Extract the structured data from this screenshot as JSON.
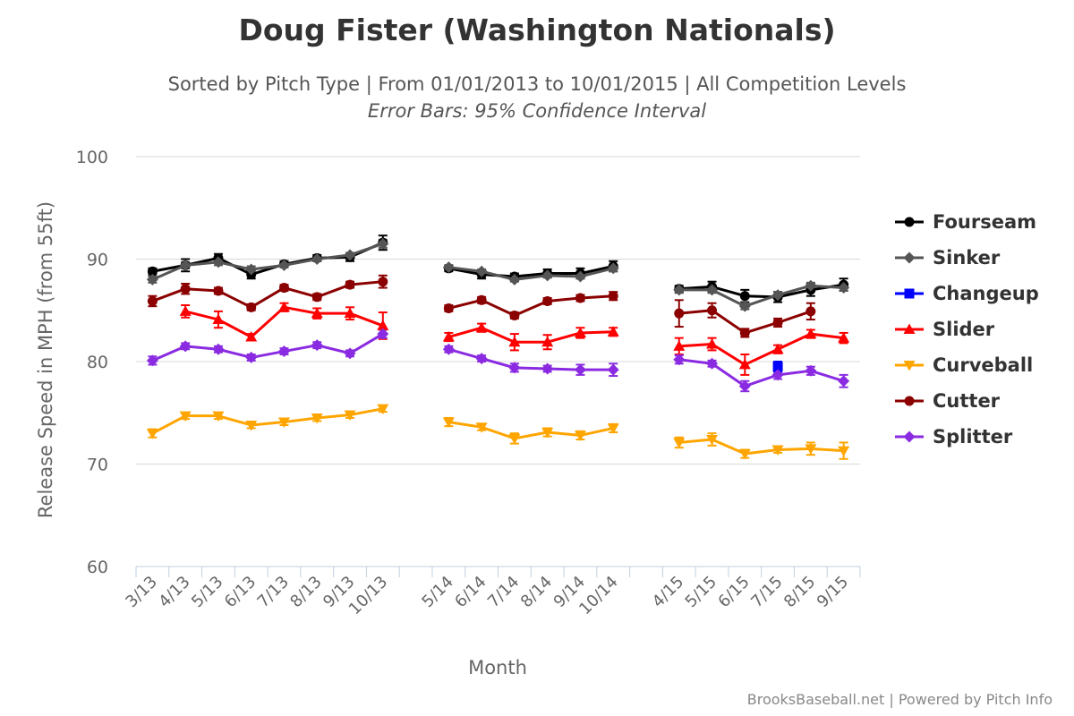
{
  "chart_data": {
    "type": "line",
    "title": "Doug Fister (Washington Nationals)",
    "subtitle": "Sorted by Pitch Type | From 01/01/2013 to 10/01/2015 | All Competition Levels",
    "subtitle2": "Error Bars: 95% Confidence Interval",
    "xlabel": "Month",
    "ylabel": "Release Speed in MPH (from 55ft)",
    "ylim": [
      60,
      100
    ],
    "yticks": [
      60,
      70,
      80,
      90,
      100
    ],
    "grid": true,
    "legend_position": "right",
    "credits": "BrooksBaseball.net | Powered by Pitch Info",
    "categories": [
      "3/13",
      "4/13",
      "5/13",
      "6/13",
      "7/13",
      "8/13",
      "9/13",
      "10/13",
      "",
      "5/14",
      "6/14",
      "7/14",
      "8/14",
      "9/14",
      "10/14",
      "",
      "4/15",
      "5/15",
      "6/15",
      "7/15",
      "8/15",
      "9/15"
    ],
    "series": [
      {
        "name": "Fourseam",
        "color": "#000000",
        "marker": "circle",
        "values": [
          88.8,
          89.4,
          90.1,
          88.5,
          89.5,
          90.1,
          90.2,
          91.6,
          null,
          89.1,
          88.5,
          88.3,
          88.6,
          88.6,
          89.3,
          null,
          87.1,
          87.3,
          86.4,
          86.3,
          87.0,
          87.5
        ],
        "errors": [
          0.3,
          0.6,
          0.4,
          0.4,
          0.3,
          0.3,
          0.4,
          0.7,
          null,
          0.3,
          0.4,
          0.3,
          0.4,
          0.5,
          0.5,
          null,
          0.3,
          0.5,
          0.6,
          0.5,
          0.6,
          0.6
        ]
      },
      {
        "name": "Sinker",
        "color": "#555555",
        "marker": "diamond",
        "values": [
          88.0,
          89.4,
          89.7,
          89.0,
          89.4,
          90.0,
          90.4,
          91.5,
          null,
          89.2,
          88.8,
          88.0,
          88.4,
          88.3,
          89.1,
          null,
          87.0,
          87.0,
          85.4,
          86.5,
          87.4,
          87.2
        ],
        "errors": [
          0.3,
          0.3,
          0.3,
          0.3,
          0.2,
          0.2,
          0.2,
          0.4,
          null,
          0.2,
          0.2,
          0.2,
          0.2,
          0.2,
          0.3,
          null,
          0.3,
          0.3,
          0.3,
          0.3,
          0.3,
          0.3
        ]
      },
      {
        "name": "Changeup",
        "color": "#0000ff",
        "marker": "square",
        "values": [
          null,
          null,
          null,
          null,
          null,
          null,
          null,
          null,
          null,
          null,
          null,
          null,
          null,
          null,
          null,
          null,
          null,
          null,
          null,
          79.5,
          null,
          null
        ],
        "errors": [
          null,
          null,
          null,
          null,
          null,
          null,
          null,
          null,
          null,
          null,
          null,
          null,
          null,
          null,
          null,
          null,
          null,
          null,
          null,
          0.5,
          null,
          null
        ]
      },
      {
        "name": "Slider",
        "color": "#ff0000",
        "marker": "triangle",
        "values": [
          null,
          84.9,
          84.1,
          82.4,
          85.3,
          84.7,
          84.7,
          83.5,
          null,
          82.4,
          83.3,
          81.9,
          81.9,
          82.8,
          82.9,
          null,
          81.5,
          81.7,
          79.7,
          81.2,
          82.7,
          82.3
        ],
        "errors": [
          null,
          0.6,
          0.8,
          0.3,
          0.4,
          0.5,
          0.6,
          1.3,
          null,
          0.4,
          0.4,
          0.8,
          0.7,
          0.5,
          0.4,
          null,
          0.8,
          0.6,
          1.0,
          0.4,
          0.4,
          0.5
        ]
      },
      {
        "name": "Curveball",
        "color": "#ffa500",
        "marker": "triangle-down",
        "values": [
          73.0,
          74.7,
          74.7,
          73.8,
          74.1,
          74.5,
          74.8,
          75.4,
          null,
          74.1,
          73.6,
          72.5,
          73.1,
          72.8,
          73.5,
          null,
          72.1,
          72.4,
          71.0,
          71.4,
          71.5,
          71.3
        ],
        "errors": [
          0.4,
          0.3,
          0.3,
          0.3,
          0.3,
          0.3,
          0.3,
          0.3,
          null,
          0.4,
          0.3,
          0.5,
          0.4,
          0.4,
          0.4,
          null,
          0.5,
          0.6,
          0.4,
          0.3,
          0.6,
          0.8
        ]
      },
      {
        "name": "Cutter",
        "color": "#8b0000",
        "marker": "circle",
        "values": [
          85.9,
          87.1,
          86.9,
          85.3,
          87.2,
          86.3,
          87.5,
          87.8,
          null,
          85.2,
          86.0,
          84.5,
          85.9,
          86.2,
          86.4,
          null,
          84.7,
          85.0,
          82.8,
          83.8,
          84.9,
          null
        ],
        "errors": [
          0.5,
          0.5,
          0.3,
          0.3,
          0.3,
          0.3,
          0.3,
          0.6,
          null,
          0.3,
          0.3,
          0.3,
          0.3,
          0.3,
          0.4,
          null,
          1.3,
          0.7,
          0.4,
          0.4,
          0.8,
          null
        ]
      },
      {
        "name": "Splitter",
        "color": "#8a2be2",
        "marker": "diamond",
        "values": [
          80.1,
          81.5,
          81.2,
          80.4,
          81.0,
          81.6,
          80.8,
          82.7,
          null,
          81.2,
          80.3,
          79.4,
          79.3,
          79.2,
          79.2,
          null,
          80.2,
          79.8,
          77.6,
          78.7,
          79.1,
          78.1
        ],
        "errors": [
          0.4,
          0.3,
          0.3,
          0.3,
          0.3,
          0.3,
          0.3,
          0.4,
          null,
          0.3,
          0.3,
          0.4,
          0.3,
          0.5,
          0.6,
          null,
          0.4,
          0.3,
          0.5,
          0.4,
          0.4,
          0.6
        ]
      }
    ]
  }
}
